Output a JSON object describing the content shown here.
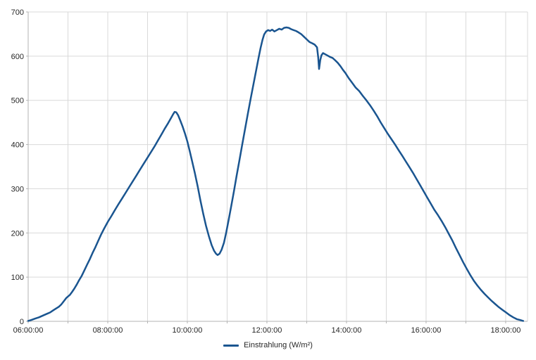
{
  "chart_data": {
    "type": "line",
    "title": "",
    "xlabel": "",
    "ylabel": "",
    "legend_label": "Einstrahlung (W/m²)",
    "legend_position": "bottom-center",
    "grid": "major horizontal and vertical, light gray",
    "background": "#ffffff",
    "grid_color": "#d9d9d9",
    "axis_color": "#b3b3b3",
    "text_color": "#262626",
    "ylim": [
      0,
      700
    ],
    "xlim_hours": [
      6.0,
      18.55
    ],
    "y_ticks": [
      0,
      100,
      200,
      300,
      400,
      500,
      600,
      700
    ],
    "x_gridline_hours": [
      6,
      7,
      8,
      9,
      10,
      11,
      12,
      13,
      14,
      15,
      16,
      17,
      18
    ],
    "x_tick_labels": [
      {
        "hour": 6,
        "label": "06:00:00"
      },
      {
        "hour": 8,
        "label": "08:00:00"
      },
      {
        "hour": 10,
        "label": "10:00:00"
      },
      {
        "hour": 12,
        "label": "12:00:00"
      },
      {
        "hour": 14,
        "label": "14:00:00"
      },
      {
        "hour": 16,
        "label": "16:00:00"
      },
      {
        "hour": 18,
        "label": "18:00:00"
      }
    ],
    "series": [
      {
        "name": "Einstrahlung (W/m²)",
        "color": "#1a5590",
        "line_width": 2.5,
        "points": [
          [
            6.0,
            1
          ],
          [
            6.08,
            3
          ],
          [
            6.17,
            6
          ],
          [
            6.27,
            9
          ],
          [
            6.37,
            13
          ],
          [
            6.47,
            17
          ],
          [
            6.55,
            20
          ],
          [
            6.63,
            25
          ],
          [
            6.7,
            29
          ],
          [
            6.77,
            33
          ],
          [
            6.83,
            38
          ],
          [
            6.9,
            46
          ],
          [
            6.96,
            53
          ],
          [
            7.01,
            57
          ],
          [
            7.05,
            60
          ],
          [
            7.1,
            66
          ],
          [
            7.16,
            74
          ],
          [
            7.22,
            83
          ],
          [
            7.28,
            93
          ],
          [
            7.34,
            102
          ],
          [
            7.41,
            115
          ],
          [
            7.48,
            128
          ],
          [
            7.55,
            141
          ],
          [
            7.62,
            155
          ],
          [
            7.69,
            168
          ],
          [
            7.76,
            182
          ],
          [
            7.83,
            196
          ],
          [
            7.91,
            210
          ],
          [
            8.0,
            225
          ],
          [
            8.09,
            238
          ],
          [
            8.18,
            252
          ],
          [
            8.27,
            265
          ],
          [
            8.36,
            278
          ],
          [
            8.45,
            291
          ],
          [
            8.54,
            304
          ],
          [
            8.63,
            317
          ],
          [
            8.72,
            330
          ],
          [
            8.81,
            343
          ],
          [
            8.9,
            356
          ],
          [
            8.99,
            369
          ],
          [
            9.08,
            382
          ],
          [
            9.17,
            395
          ],
          [
            9.26,
            409
          ],
          [
            9.35,
            423
          ],
          [
            9.44,
            437
          ],
          [
            9.52,
            449
          ],
          [
            9.59,
            460
          ],
          [
            9.64,
            468
          ],
          [
            9.68,
            474
          ],
          [
            9.72,
            473
          ],
          [
            9.77,
            466
          ],
          [
            9.82,
            455
          ],
          [
            9.88,
            441
          ],
          [
            9.94,
            425
          ],
          [
            10.0,
            407
          ],
          [
            10.06,
            385
          ],
          [
            10.12,
            362
          ],
          [
            10.19,
            335
          ],
          [
            10.26,
            305
          ],
          [
            10.33,
            273
          ],
          [
            10.4,
            243
          ],
          [
            10.47,
            216
          ],
          [
            10.54,
            193
          ],
          [
            10.61,
            173
          ],
          [
            10.67,
            160
          ],
          [
            10.72,
            153
          ],
          [
            10.76,
            150
          ],
          [
            10.81,
            153
          ],
          [
            10.86,
            162
          ],
          [
            10.92,
            178
          ],
          [
            10.98,
            202
          ],
          [
            11.04,
            230
          ],
          [
            11.1,
            259
          ],
          [
            11.17,
            294
          ],
          [
            11.24,
            330
          ],
          [
            11.31,
            365
          ],
          [
            11.38,
            400
          ],
          [
            11.45,
            435
          ],
          [
            11.52,
            469
          ],
          [
            11.59,
            503
          ],
          [
            11.66,
            536
          ],
          [
            11.73,
            568
          ],
          [
            11.79,
            596
          ],
          [
            11.84,
            618
          ],
          [
            11.89,
            637
          ],
          [
            11.93,
            649
          ],
          [
            11.98,
            656
          ],
          [
            12.03,
            659
          ],
          [
            12.08,
            657
          ],
          [
            12.13,
            660
          ],
          [
            12.19,
            656
          ],
          [
            12.25,
            659
          ],
          [
            12.31,
            662
          ],
          [
            12.37,
            660
          ],
          [
            12.43,
            664
          ],
          [
            12.49,
            665
          ],
          [
            12.55,
            664
          ],
          [
            12.61,
            661
          ],
          [
            12.67,
            659
          ],
          [
            12.73,
            657
          ],
          [
            12.79,
            654
          ],
          [
            12.86,
            650
          ],
          [
            12.93,
            644
          ],
          [
            13.0,
            638
          ],
          [
            13.07,
            632
          ],
          [
            13.14,
            629
          ],
          [
            13.2,
            626
          ],
          [
            13.26,
            620
          ],
          [
            13.29,
            597
          ],
          [
            13.31,
            571
          ],
          [
            13.34,
            591
          ],
          [
            13.37,
            602
          ],
          [
            13.41,
            607
          ],
          [
            13.47,
            604
          ],
          [
            13.53,
            601
          ],
          [
            13.59,
            598
          ],
          [
            13.65,
            596
          ],
          [
            13.71,
            591
          ],
          [
            13.78,
            585
          ],
          [
            13.85,
            577
          ],
          [
            13.91,
            569
          ],
          [
            13.97,
            562
          ],
          [
            14.05,
            551
          ],
          [
            14.14,
            540
          ],
          [
            14.23,
            529
          ],
          [
            14.32,
            521
          ],
          [
            14.41,
            510
          ],
          [
            14.5,
            500
          ],
          [
            14.59,
            489
          ],
          [
            14.68,
            477
          ],
          [
            14.77,
            464
          ],
          [
            14.86,
            450
          ],
          [
            14.95,
            437
          ],
          [
            15.04,
            424
          ],
          [
            15.13,
            412
          ],
          [
            15.22,
            400
          ],
          [
            15.31,
            387
          ],
          [
            15.4,
            375
          ],
          [
            15.49,
            362
          ],
          [
            15.58,
            349
          ],
          [
            15.67,
            336
          ],
          [
            15.76,
            322
          ],
          [
            15.85,
            308
          ],
          [
            15.94,
            294
          ],
          [
            16.03,
            280
          ],
          [
            16.12,
            266
          ],
          [
            16.21,
            252
          ],
          [
            16.3,
            240
          ],
          [
            16.39,
            227
          ],
          [
            16.48,
            213
          ],
          [
            16.57,
            198
          ],
          [
            16.66,
            183
          ],
          [
            16.75,
            166
          ],
          [
            16.84,
            150
          ],
          [
            16.93,
            134
          ],
          [
            17.02,
            119
          ],
          [
            17.11,
            105
          ],
          [
            17.2,
            92
          ],
          [
            17.29,
            81
          ],
          [
            17.38,
            71
          ],
          [
            17.47,
            62
          ],
          [
            17.56,
            54
          ],
          [
            17.65,
            46
          ],
          [
            17.74,
            39
          ],
          [
            17.83,
            32
          ],
          [
            17.92,
            26
          ],
          [
            18.01,
            20
          ],
          [
            18.1,
            14
          ],
          [
            18.19,
            9
          ],
          [
            18.28,
            5
          ],
          [
            18.36,
            3
          ],
          [
            18.44,
            1
          ]
        ]
      }
    ]
  }
}
